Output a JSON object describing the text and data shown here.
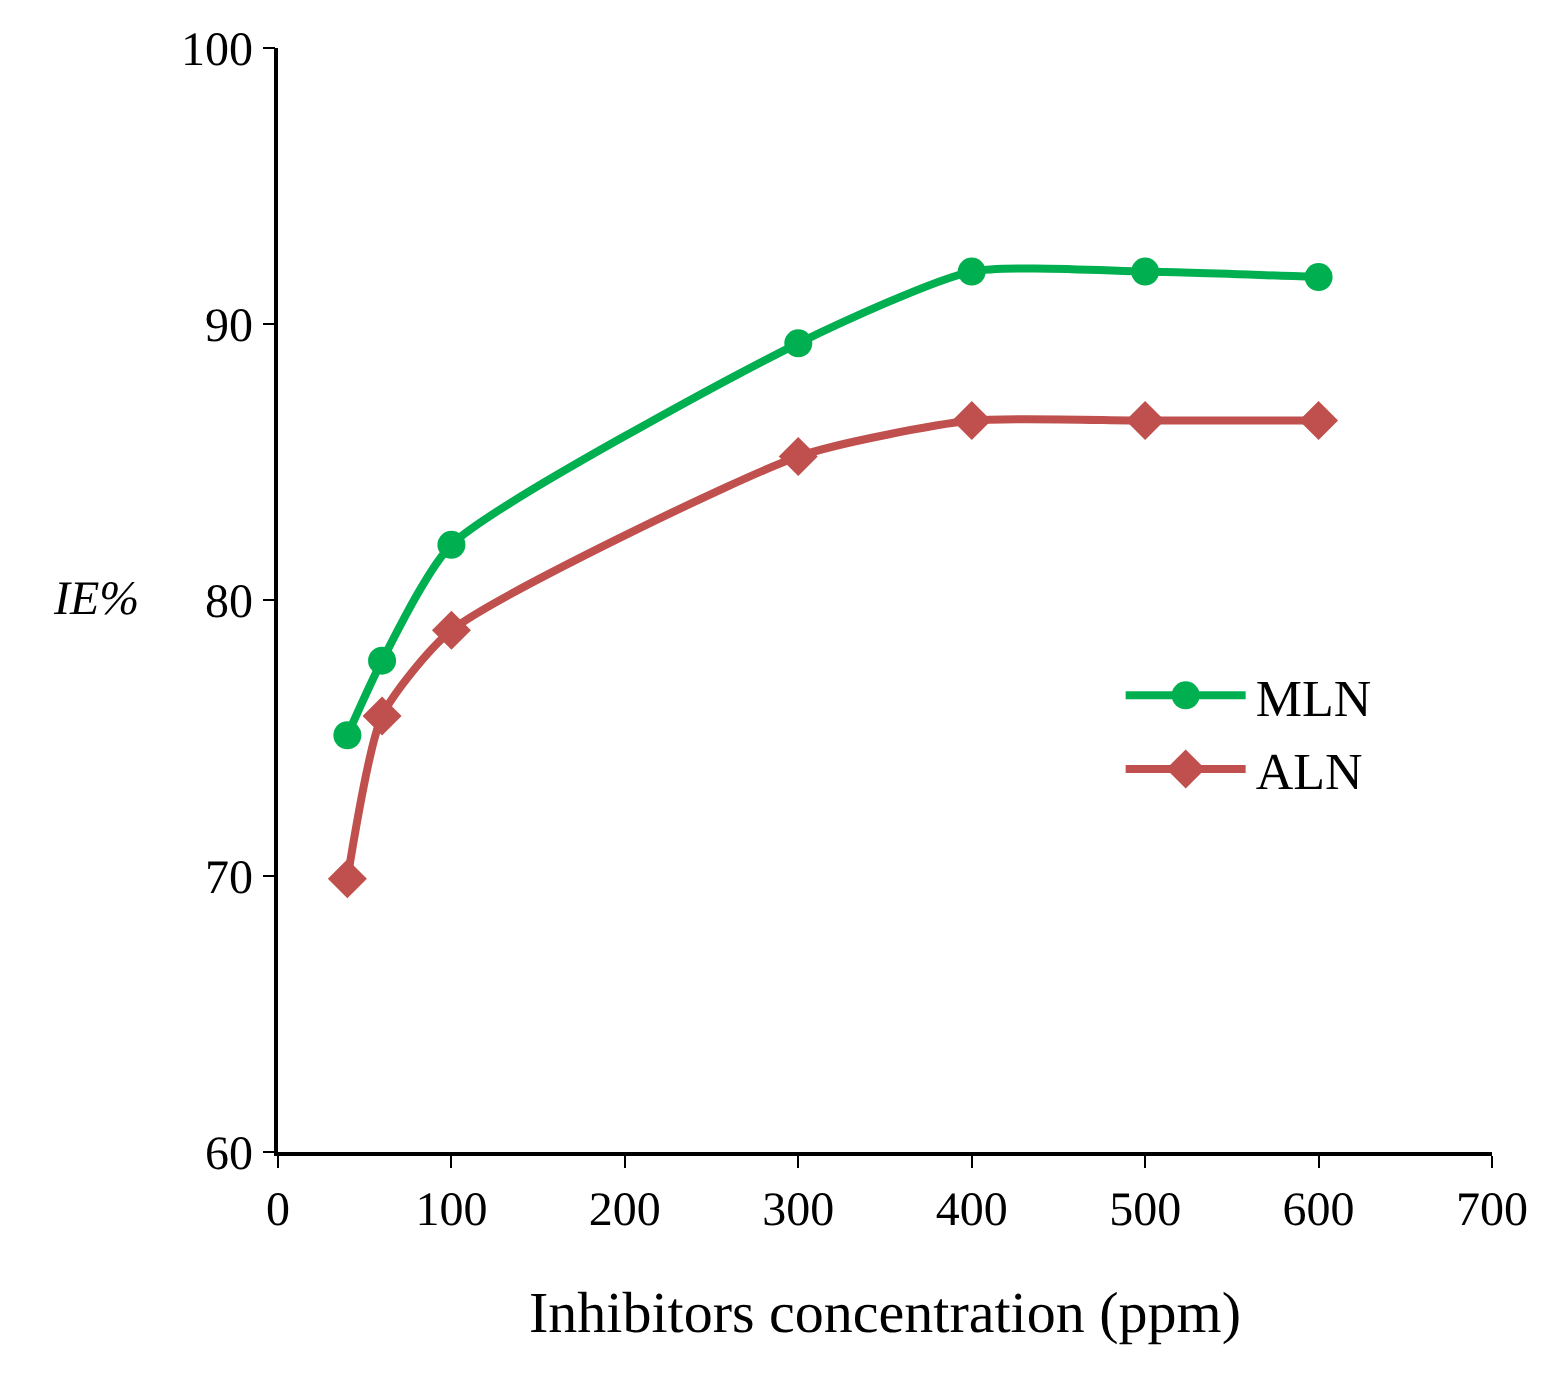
{
  "chart_data": {
    "type": "line",
    "xlabel": "Inhibitors concentration (ppm)",
    "ylabel": "IE%",
    "x": [
      40,
      60,
      100,
      300,
      400,
      500,
      600
    ],
    "series": [
      {
        "name": "MLN",
        "color": "#00b050",
        "marker": "circle",
        "values": [
          75.1,
          77.8,
          82.0,
          89.3,
          91.9,
          91.9,
          91.7
        ]
      },
      {
        "name": "ALN",
        "color": "#c0504d",
        "marker": "diamond",
        "values": [
          69.9,
          75.8,
          78.9,
          85.2,
          86.5,
          86.5,
          86.5
        ]
      }
    ],
    "xlim": [
      0,
      700
    ],
    "xticks": [
      0,
      100,
      200,
      300,
      400,
      500,
      600,
      700
    ],
    "ylim": [
      60,
      100
    ],
    "yticks": [
      60,
      70,
      80,
      90,
      100
    ],
    "legend": "right",
    "line_style": "solid"
  }
}
